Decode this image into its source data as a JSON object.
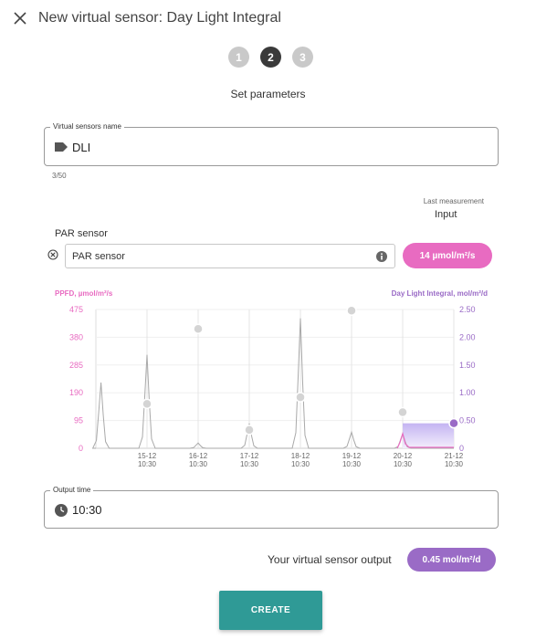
{
  "header": {
    "title": "New virtual sensor: Day Light Integral",
    "close_icon": "close-icon"
  },
  "stepper": {
    "steps": [
      "1",
      "2",
      "3"
    ],
    "active_index": 1
  },
  "subtitle": "Set parameters",
  "name_field": {
    "legend": "Virtual sensors name",
    "value": "DLI",
    "icon": "tag-icon",
    "char_count": "3/50"
  },
  "last_measurement": {
    "label": "Last measurement",
    "column": "Input"
  },
  "par_sensor": {
    "label": "PAR sensor",
    "value": "PAR sensor",
    "badge": "14 µmol/m²/s",
    "badge_color": "#e86bc1"
  },
  "chart_data": {
    "type": "line",
    "left_axis": {
      "label": "PPFD, µmol/m²/s",
      "ticks": [
        0,
        95,
        190,
        285,
        380,
        475
      ],
      "range": [
        0,
        475
      ],
      "color": "#e86bc1"
    },
    "right_axis": {
      "label": "Day Light Integral, mol/m²/d",
      "ticks": [
        "0",
        "0.50",
        "1.00",
        "1.50",
        "2.00",
        "2.50"
      ],
      "range": [
        0,
        2.5
      ],
      "color": "#9a6bc6"
    },
    "x_ticks": [
      {
        "date": "15-12",
        "time": "10:30"
      },
      {
        "date": "16-12",
        "time": "10:30"
      },
      {
        "date": "17-12",
        "time": "10:30"
      },
      {
        "date": "18-12",
        "time": "10:30"
      },
      {
        "date": "19-12",
        "time": "10:30"
      },
      {
        "date": "20-12",
        "time": "10:30"
      },
      {
        "date": "21-12",
        "time": "10:30"
      }
    ],
    "ppfd_peaks": [
      {
        "day": -0.9,
        "value": 225
      },
      {
        "day": 0,
        "value": 320
      },
      {
        "day": 1,
        "value": 18
      },
      {
        "day": 2,
        "value": 85
      },
      {
        "day": 3,
        "value": 445
      },
      {
        "day": 4,
        "value": 55
      },
      {
        "day": 5,
        "value": 50
      }
    ],
    "dli_points": [
      {
        "day": 0,
        "value": 0.8
      },
      {
        "day": 1,
        "value": 2.15
      },
      {
        "day": 2,
        "value": 0.33
      },
      {
        "day": 3,
        "value": 0.92
      },
      {
        "day": 4,
        "value": 2.48
      },
      {
        "day": 5,
        "value": 0.65
      },
      {
        "day": 6,
        "value": 0.45
      }
    ],
    "grid": true
  },
  "output_time": {
    "legend": "Output time",
    "value": "10:30",
    "icon": "clock-icon"
  },
  "output": {
    "label": "Your virtual sensor output",
    "badge": "0.45 mol/m²/d",
    "badge_color": "#9a6bc6"
  },
  "create_button": {
    "label": "CREATE",
    "color": "#2f9a96"
  }
}
